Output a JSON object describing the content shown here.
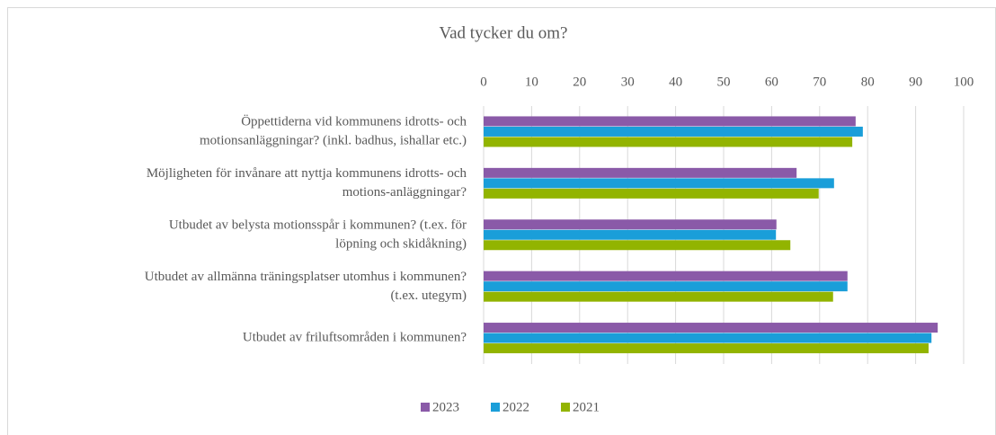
{
  "chart_data": {
    "type": "hbar",
    "title": "Vad tycker du om?",
    "categories": [
      [
        "Öppettiderna vid kommunens idrotts- och",
        "motionsanläggningar? (inkl. badhus, ishallar etc.)"
      ],
      [
        "Möjligheten för invånare att nyttja kommunens idrotts- och",
        "motions-anläggningar?"
      ],
      [
        "Utbudet av belysta motionsspår  i kommunen? (t.ex. för",
        "löpning och skidåkning)"
      ],
      [
        "Utbudet av allmänna träningsplatser utomhus i kommunen?",
        "(t.ex. utegym)"
      ],
      [
        "Utbudet av friluftsområden i kommunen?"
      ]
    ],
    "series": [
      {
        "name": "2023",
        "color": "#8a5aa8",
        "values": [
          77.5,
          65.2,
          61,
          75.8,
          94.6
        ]
      },
      {
        "name": "2022",
        "color": "#1a9ed9",
        "values": [
          79,
          73,
          60.9,
          75.8,
          93.3
        ]
      },
      {
        "name": "2021",
        "color": "#92b400",
        "values": [
          76.8,
          69.8,
          63.9,
          72.8,
          92.7
        ]
      }
    ],
    "xlim": [
      0,
      100
    ],
    "xticks": [
      0,
      10,
      20,
      30,
      40,
      50,
      60,
      70,
      80,
      90,
      100
    ],
    "grid": true,
    "legend": "bottom"
  }
}
